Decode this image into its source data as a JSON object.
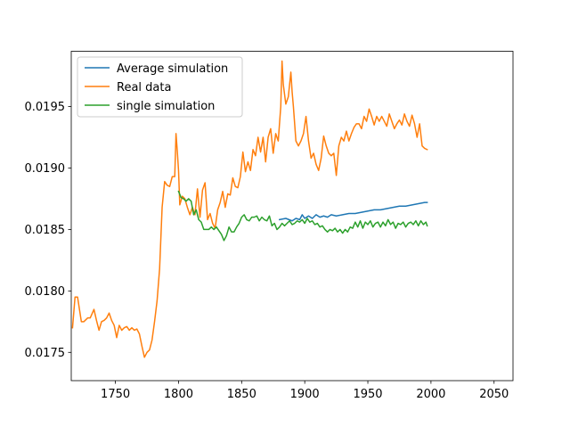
{
  "chart_data": {
    "type": "line",
    "title": "",
    "xlabel": "",
    "ylabel": "",
    "xlim": [
      1715,
      2065
    ],
    "ylim": [
      0.01727,
      0.01995
    ],
    "x_ticks": [
      1750,
      1800,
      1850,
      1900,
      1950,
      2000,
      2050
    ],
    "x_tick_labels": [
      "1750",
      "1800",
      "1850",
      "1900",
      "1950",
      "2000",
      "2050"
    ],
    "y_ticks": [
      0.0175,
      0.018,
      0.0185,
      0.019,
      0.0195
    ],
    "y_tick_labels": [
      "0.0175",
      "0.0180",
      "0.0185",
      "0.0190",
      "0.0195"
    ],
    "grid": false,
    "legend_position": "upper-left",
    "series": [
      {
        "name": "Average simulation",
        "color": "#1f77b4",
        "x": [
          1880,
          1885,
          1890,
          1893,
          1896,
          1898,
          1900,
          1903,
          1906,
          1909,
          1912,
          1915,
          1918,
          1921,
          1925,
          1930,
          1935,
          1940,
          1945,
          1950,
          1955,
          1960,
          1965,
          1970,
          1975,
          1980,
          1985,
          1990,
          1995,
          1997
        ],
        "y": [
          0.01858,
          0.01859,
          0.01857,
          0.01859,
          0.01858,
          0.01862,
          0.01859,
          0.01861,
          0.01859,
          0.01862,
          0.0186,
          0.01861,
          0.0186,
          0.01862,
          0.01861,
          0.01862,
          0.01863,
          0.01863,
          0.01864,
          0.01865,
          0.01866,
          0.01866,
          0.01867,
          0.01868,
          0.01869,
          0.01869,
          0.0187,
          0.01871,
          0.01872,
          0.01872
        ]
      },
      {
        "name": "Real data",
        "color": "#ff7f0e",
        "x": [
          1716,
          1718,
          1720,
          1723,
          1725,
          1728,
          1730,
          1733,
          1735,
          1737,
          1739,
          1741,
          1743,
          1745,
          1747,
          1749,
          1751,
          1753,
          1755,
          1757,
          1759,
          1761,
          1763,
          1765,
          1767,
          1769,
          1771,
          1773,
          1775,
          1777,
          1779,
          1781,
          1783,
          1785,
          1787,
          1789,
          1791,
          1793,
          1795,
          1797,
          1798,
          1799,
          1800,
          1801,
          1803,
          1805,
          1807,
          1809,
          1811,
          1813,
          1815,
          1817,
          1819,
          1821,
          1823,
          1825,
          1827,
          1829,
          1831,
          1833,
          1835,
          1837,
          1839,
          1841,
          1843,
          1845,
          1847,
          1849,
          1851,
          1853,
          1855,
          1857,
          1859,
          1861,
          1863,
          1865,
          1867,
          1869,
          1871,
          1873,
          1875,
          1877,
          1879,
          1881,
          1882,
          1883,
          1885,
          1887,
          1889,
          1890,
          1891,
          1893,
          1895,
          1897,
          1899,
          1901,
          1903,
          1905,
          1907,
          1909,
          1911,
          1913,
          1915,
          1917,
          1919,
          1921,
          1923,
          1925,
          1927,
          1929,
          1931,
          1933,
          1935,
          1937,
          1939,
          1941,
          1943,
          1945,
          1947,
          1949,
          1951,
          1953,
          1955,
          1957,
          1959,
          1961,
          1963,
          1965,
          1967,
          1969,
          1971,
          1973,
          1975,
          1977,
          1979,
          1981,
          1983,
          1985,
          1987,
          1989,
          1991,
          1993,
          1995,
          1997
        ],
        "y": [
          0.0177,
          0.01795,
          0.01795,
          0.01775,
          0.01775,
          0.01778,
          0.01778,
          0.01785,
          0.01776,
          0.01768,
          0.01775,
          0.01776,
          0.01778,
          0.01782,
          0.01776,
          0.01772,
          0.01762,
          0.01772,
          0.01768,
          0.0177,
          0.01771,
          0.01768,
          0.0177,
          0.01768,
          0.01769,
          0.01765,
          0.01755,
          0.01746,
          0.0175,
          0.01752,
          0.0176,
          0.01775,
          0.01792,
          0.01818,
          0.01868,
          0.01889,
          0.01886,
          0.01885,
          0.01893,
          0.01893,
          0.01928,
          0.01914,
          0.01898,
          0.0187,
          0.01877,
          0.01875,
          0.01868,
          0.01862,
          0.01868,
          0.01862,
          0.01883,
          0.0186,
          0.01882,
          0.01888,
          0.01858,
          0.01863,
          0.01855,
          0.01851,
          0.01866,
          0.01872,
          0.01881,
          0.01868,
          0.01879,
          0.01878,
          0.01892,
          0.01885,
          0.01884,
          0.01893,
          0.01913,
          0.01897,
          0.01905,
          0.01898,
          0.01915,
          0.0191,
          0.01925,
          0.01913,
          0.01925,
          0.01905,
          0.01925,
          0.01932,
          0.01912,
          0.01928,
          0.01922,
          0.0195,
          0.01987,
          0.01968,
          0.01952,
          0.01958,
          0.01978,
          0.01962,
          0.0195,
          0.01922,
          0.01918,
          0.01922,
          0.01928,
          0.01942,
          0.01922,
          0.01908,
          0.01912,
          0.01903,
          0.01898,
          0.01908,
          0.01926,
          0.01918,
          0.01912,
          0.0191,
          0.01912,
          0.01894,
          0.01918,
          0.01925,
          0.01922,
          0.0193,
          0.01922,
          0.01928,
          0.01933,
          0.01936,
          0.01936,
          0.01932,
          0.01942,
          0.01938,
          0.01948,
          0.01942,
          0.01935,
          0.01942,
          0.01938,
          0.01942,
          0.01938,
          0.01934,
          0.01944,
          0.01938,
          0.01932,
          0.01936,
          0.01939,
          0.01935,
          0.01944,
          0.01938,
          0.01934,
          0.01943,
          0.01936,
          0.01925,
          0.01936,
          0.01918,
          0.01916,
          0.01915
        ]
      },
      {
        "name": "single simulation",
        "color": "#2ca02c",
        "x": [
          1800,
          1802,
          1804,
          1806,
          1808,
          1810,
          1812,
          1814,
          1816,
          1818,
          1820,
          1822,
          1824,
          1826,
          1828,
          1830,
          1832,
          1834,
          1836,
          1838,
          1840,
          1842,
          1844,
          1846,
          1848,
          1850,
          1852,
          1854,
          1856,
          1858,
          1860,
          1862,
          1864,
          1866,
          1868,
          1870,
          1872,
          1874,
          1876,
          1878,
          1880,
          1882,
          1884,
          1886,
          1888,
          1890,
          1892,
          1894,
          1896,
          1898,
          1900,
          1902,
          1904,
          1906,
          1908,
          1910,
          1912,
          1914,
          1916,
          1918,
          1920,
          1922,
          1924,
          1926,
          1928,
          1930,
          1932,
          1934,
          1936,
          1938,
          1940,
          1942,
          1944,
          1946,
          1948,
          1950,
          1952,
          1954,
          1956,
          1958,
          1960,
          1962,
          1964,
          1966,
          1968,
          1970,
          1972,
          1974,
          1976,
          1978,
          1980,
          1982,
          1984,
          1986,
          1988,
          1990,
          1992,
          1994,
          1996,
          1997
        ],
        "y": [
          0.01881,
          0.01876,
          0.01875,
          0.01873,
          0.01875,
          0.01873,
          0.01862,
          0.01866,
          0.01858,
          0.01856,
          0.0185,
          0.0185,
          0.0185,
          0.01852,
          0.0185,
          0.01852,
          0.01849,
          0.01846,
          0.01841,
          0.01845,
          0.01852,
          0.01848,
          0.01848,
          0.01852,
          0.01855,
          0.0186,
          0.01862,
          0.01858,
          0.01857,
          0.0186,
          0.0186,
          0.01861,
          0.01857,
          0.0186,
          0.01858,
          0.01857,
          0.01861,
          0.01853,
          0.01855,
          0.0185,
          0.01852,
          0.01855,
          0.01853,
          0.01855,
          0.01857,
          0.01854,
          0.01855,
          0.01857,
          0.01856,
          0.01858,
          0.01855,
          0.01859,
          0.01856,
          0.01857,
          0.01854,
          0.01855,
          0.01852,
          0.01853,
          0.0185,
          0.01848,
          0.0185,
          0.01849,
          0.01851,
          0.01848,
          0.0185,
          0.01847,
          0.0185,
          0.01848,
          0.01852,
          0.01851,
          0.01856,
          0.01852,
          0.01857,
          0.01851,
          0.01856,
          0.01854,
          0.01857,
          0.01852,
          0.01855,
          0.01856,
          0.01852,
          0.01856,
          0.01853,
          0.01858,
          0.01854,
          0.01856,
          0.01851,
          0.01855,
          0.01854,
          0.01856,
          0.01852,
          0.01855,
          0.01856,
          0.01854,
          0.01857,
          0.01853,
          0.01857,
          0.01854,
          0.01856,
          0.01853
        ]
      }
    ]
  }
}
